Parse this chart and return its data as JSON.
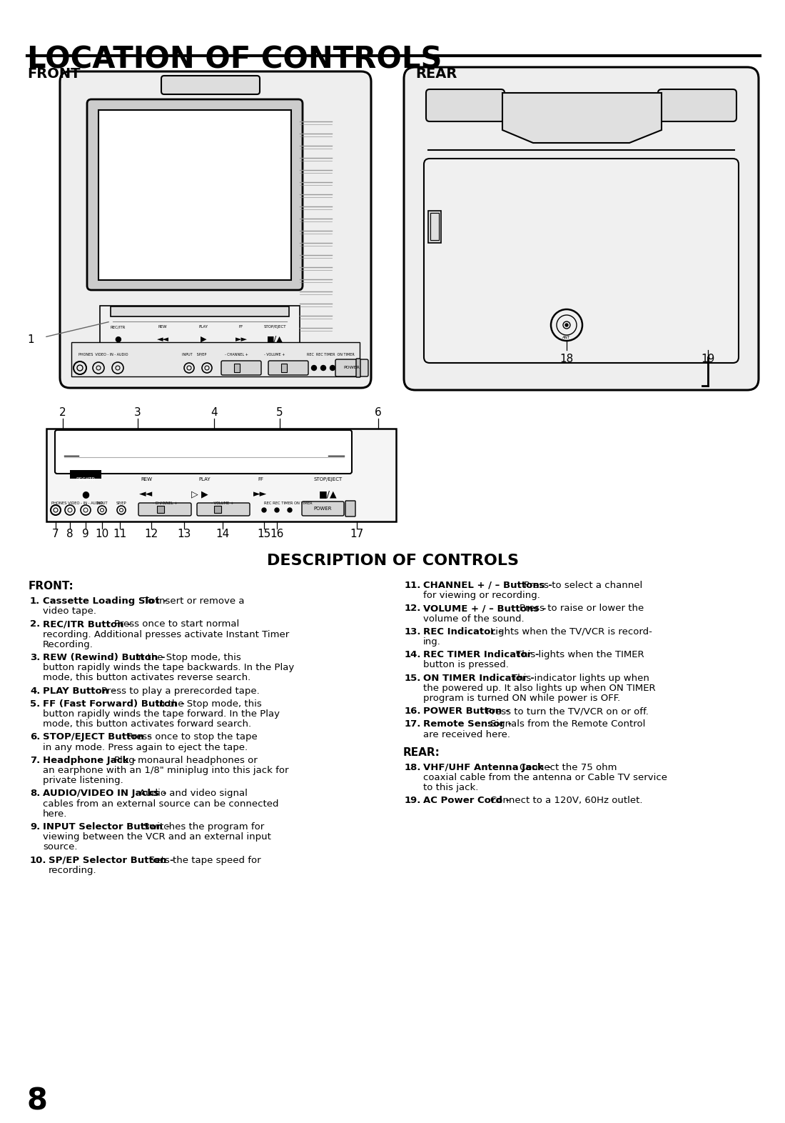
{
  "title": "LOCATION OF CONTROLS",
  "front_label": "FRONT",
  "rear_label": "REAR",
  "desc_title": "DESCRIPTION OF CONTROLS",
  "front_section": "FRONT:",
  "rear_section": "REAR:",
  "page_number": "8",
  "front_items": [
    [
      "1.",
      "Cassette Loading Slot - ",
      "To insert or remove a\nvideo tape."
    ],
    [
      "2.",
      "REC/ITR Button - ",
      "Press once to start normal\nrecording. Additional presses activate Instant Timer\nRecording."
    ],
    [
      "3.",
      "REW (Rewind) Button - ",
      "In the Stop mode, this\nbutton rapidly winds the tape backwards. In the Play\nmode, this button activates reverse search."
    ],
    [
      "4.",
      "PLAY Button - ",
      "Press to play a prerecorded tape."
    ],
    [
      "5.",
      "FF (Fast Forward) Button - ",
      "In the Stop mode, this\nbutton rapidly winds the tape forward. In the Play\nmode, this button activates forward search."
    ],
    [
      "6.",
      "STOP/EJECT Button - ",
      "Press once to stop the tape\nin any mode. Press again to eject the tape."
    ],
    [
      "7.",
      "Headphone Jack - ",
      "Plug monaural headphones or\nan earphone with an 1/8\" miniplug into this jack for\nprivate listening."
    ],
    [
      "8.",
      "AUDIO/VIDEO IN Jacks - ",
      "Audio and video signal\ncables from an external source can be connected\nhere."
    ],
    [
      "9.",
      "INPUT Selector Button - ",
      "Switches the program for\nviewing between the VCR and an external input\nsource."
    ],
    [
      "10.",
      "SP/EP Selector Button - ",
      "Sets the tape speed for\nrecording."
    ]
  ],
  "right_items": [
    [
      "11.",
      "CHANNEL + / – Buttons - ",
      "Press to select a channel\nfor viewing or recording."
    ],
    [
      "12.",
      "VOLUME + / – Buttons - ",
      "Press to raise or lower the\nvolume of the sound."
    ],
    [
      "13.",
      "REC Indicator - ",
      "Lights when the TV/VCR is record-\ning."
    ],
    [
      "14.",
      "REC TIMER Indicator - ",
      "This lights when the TIMER\nbutton is pressed."
    ],
    [
      "15.",
      "ON TIMER Indicator - ",
      "This indicator lights up when\nthe powered up. It also lights up when ON TIMER\nprogram is turned ON while power is OFF."
    ],
    [
      "16.",
      "POWER Button - ",
      "Press to turn the TV/VCR on or off."
    ],
    [
      "17.",
      "Remote Sensor - ",
      "Signals from the Remote Control\nare received here."
    ]
  ],
  "rear_items": [
    [
      "18.",
      "VHF/UHF Antenna Jack - ",
      "Connect the 75 ohm\ncoaxial cable from the antenna or Cable TV service\nto this jack."
    ],
    [
      "19.",
      "AC Power Cord - ",
      "Connect to a 120V, 60Hz outlet."
    ]
  ]
}
